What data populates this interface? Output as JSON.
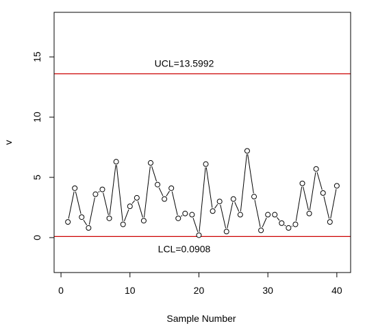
{
  "chart_data": {
    "type": "line",
    "title": "",
    "xlabel": "Sample Number",
    "ylabel": "v",
    "xlim": [
      -1,
      42
    ],
    "ylim": [
      -2.9,
      18.7
    ],
    "x_ticks": [
      0,
      10,
      20,
      30,
      40
    ],
    "y_ticks": [
      0,
      5,
      10,
      15
    ],
    "grid": false,
    "line_color": "#000000",
    "control_line_color": "#cc0000",
    "x": [
      1,
      2,
      3,
      4,
      5,
      6,
      7,
      8,
      9,
      10,
      11,
      12,
      13,
      14,
      15,
      16,
      17,
      18,
      19,
      20,
      21,
      22,
      23,
      24,
      25,
      26,
      27,
      28,
      29,
      30,
      31,
      32,
      33,
      34,
      35,
      36,
      37,
      38,
      39,
      40
    ],
    "y": [
      1.3,
      4.1,
      1.7,
      0.8,
      3.6,
      4.0,
      1.6,
      6.3,
      1.1,
      2.6,
      3.3,
      1.4,
      6.2,
      4.4,
      3.2,
      4.1,
      1.6,
      2.0,
      1.9,
      0.2,
      6.1,
      2.2,
      3.0,
      0.5,
      3.2,
      1.9,
      7.2,
      3.4,
      0.6,
      1.9,
      1.9,
      1.2,
      0.8,
      1.1,
      4.5,
      2.0,
      5.7,
      3.7,
      1.3,
      4.3
    ],
    "control_limits": [
      {
        "value": 13.5992,
        "label": "UCL=13.5992"
      },
      {
        "value": 0.0908,
        "label": "LCL=0.0908"
      }
    ]
  }
}
